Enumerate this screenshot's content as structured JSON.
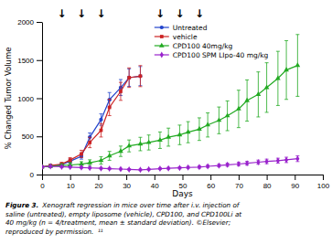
{
  "chart_data": {
    "type": "line",
    "x_label": "Days",
    "y_label": "% Changed Tumor Volume",
    "xlim": [
      0,
      100
    ],
    "ylim": [
      0,
      2000
    ],
    "xticks": [
      0,
      10,
      20,
      30,
      40,
      50,
      60,
      70,
      80,
      90,
      100
    ],
    "yticks": [
      0,
      500,
      1000,
      1500,
      2000
    ],
    "legend": "upper center",
    "series": [
      {
        "name": "Untreated",
        "color": "#2244cc",
        "marker": "circle",
        "x": [
          0,
          3,
          7,
          10,
          14,
          17,
          21,
          24,
          28,
          31,
          35
        ],
        "values": [
          100,
          110,
          130,
          175,
          240,
          490,
          720,
          980,
          1140,
          1270,
          1290
        ],
        "errors": [
          8,
          12,
          18,
          28,
          38,
          55,
          75,
          95,
          105,
          115,
          125
        ]
      },
      {
        "name": "vehicle",
        "color": "#cc2222",
        "marker": "square",
        "x": [
          0,
          3,
          7,
          10,
          14,
          17,
          21,
          24,
          28,
          31,
          35
        ],
        "values": [
          100,
          118,
          138,
          190,
          270,
          420,
          580,
          880,
          1090,
          1270,
          1290
        ],
        "errors": [
          10,
          15,
          22,
          32,
          48,
          68,
          88,
          108,
          118,
          128,
          138
        ]
      },
      {
        "name": "CPD100 40mg/kg",
        "color": "#22aa22",
        "marker": "triangle",
        "x": [
          0,
          3,
          7,
          10,
          14,
          17,
          21,
          24,
          28,
          31,
          35,
          38,
          42,
          45,
          49,
          52,
          56,
          59,
          63,
          66,
          70,
          73,
          77,
          80,
          84,
          87,
          91
        ],
        "values": [
          100,
          110,
          118,
          126,
          136,
          155,
          185,
          245,
          305,
          375,
          400,
          420,
          450,
          490,
          520,
          555,
          595,
          650,
          710,
          770,
          860,
          970,
          1050,
          1140,
          1260,
          1370,
          1430
        ],
        "errors": [
          12,
          18,
          22,
          28,
          32,
          38,
          48,
          58,
          68,
          78,
          88,
          98,
          108,
          118,
          128,
          138,
          148,
          158,
          175,
          195,
          245,
          270,
          295,
          325,
          355,
          385,
          405
        ]
      },
      {
        "name": "CPD100 SPM LIpo-40 mg/kg",
        "color": "#9922cc",
        "marker": "diamond",
        "x": [
          0,
          3,
          7,
          10,
          14,
          17,
          21,
          24,
          28,
          31,
          35,
          38,
          42,
          45,
          49,
          52,
          56,
          59,
          63,
          66,
          70,
          73,
          77,
          80,
          84,
          87,
          91
        ],
        "values": [
          100,
          108,
          103,
          98,
          92,
          87,
          82,
          77,
          72,
          67,
          62,
          68,
          77,
          82,
          88,
          93,
          98,
          108,
          118,
          128,
          138,
          148,
          162,
          172,
          182,
          192,
          208
        ],
        "errors": [
          8,
          10,
          10,
          10,
          10,
          10,
          10,
          10,
          10,
          10,
          10,
          10,
          12,
          12,
          13,
          13,
          15,
          15,
          17,
          20,
          22,
          25,
          27,
          30,
          32,
          35,
          38
        ]
      }
    ],
    "annotations": [
      {
        "text": "↓",
        "x": 7
      },
      {
        "text": "↓",
        "x": 14
      },
      {
        "text": "↓",
        "x": 21
      },
      {
        "text": "↓",
        "x": 42
      },
      {
        "text": "↓",
        "x": 49
      },
      {
        "text": "↓",
        "x": 56
      }
    ],
    "caption_label": "Figure 3.",
    "caption_lines": [
      "Xenograft regression in mice over time after i.v. injection of",
      "saline (untreated), empty liposome (vehicle), CPD100, and CPD100Li at",
      "40 mg/kg (n = 4/treatment, mean ± standard deviation). ©Elsevier;",
      "reproduced by permission.  ¹¹"
    ]
  }
}
